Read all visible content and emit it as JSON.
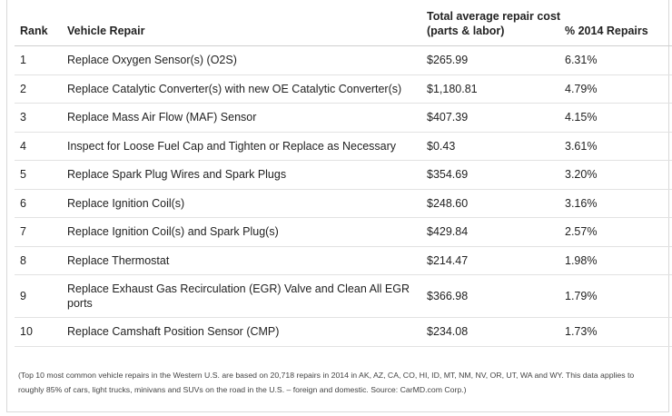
{
  "headers": {
    "rank": "Rank",
    "repair": "Vehicle Repair",
    "cost_line1": "Total average repair cost",
    "cost_line2": "(parts & labor)",
    "pct": "% 2014 Repairs"
  },
  "rows": [
    {
      "rank": "1",
      "repair": "Replace Oxygen Sensor(s) (O2S)",
      "cost": "$265.99",
      "pct": "6.31%"
    },
    {
      "rank": "2",
      "repair": "Replace Catalytic Converter(s) with new OE Catalytic Converter(s)",
      "cost": "$1,180.81",
      "pct": "4.79%"
    },
    {
      "rank": "3",
      "repair": "Replace Mass Air Flow (MAF) Sensor",
      "cost": "$407.39",
      "pct": "4.15%"
    },
    {
      "rank": "4",
      "repair": "Inspect for Loose Fuel Cap and Tighten or Replace as Necessary",
      "cost": "$0.43",
      "pct": "3.61%"
    },
    {
      "rank": "5",
      "repair": "Replace Spark Plug Wires and Spark Plugs",
      "cost": "$354.69",
      "pct": "3.20%"
    },
    {
      "rank": "6",
      "repair": "Replace Ignition Coil(s)",
      "cost": "$248.60",
      "pct": "3.16%"
    },
    {
      "rank": "7",
      "repair": "Replace Ignition Coil(s) and Spark Plug(s)",
      "cost": "$429.84",
      "pct": "2.57%"
    },
    {
      "rank": "8",
      "repair": "Replace Thermostat",
      "cost": "$214.47",
      "pct": "1.98%"
    },
    {
      "rank": "9",
      "repair_line1": "Replace Exhaust Gas Recirculation (EGR) Valve and Clean All EGR",
      "repair_line2": "ports",
      "cost": "$366.98",
      "pct": "1.79%"
    },
    {
      "rank": "10",
      "repair": "Replace Camshaft Position Sensor (CMP)",
      "cost": "$234.08",
      "pct": "1.73%"
    }
  ],
  "footnote": {
    "line1": "(Top 10 most common vehicle repairs in the Western U.S. are based on 20,718 repairs in 2014 in AK, AZ, CA, CO, HI, ID, MT, NM, NV, OR, UT, WA and WY. This data applies to",
    "line2": "roughly 85% of cars, light trucks, minivans and SUVs on the road in the U.S. – foreign and domestic. Source: CarMD.com Corp.)"
  }
}
